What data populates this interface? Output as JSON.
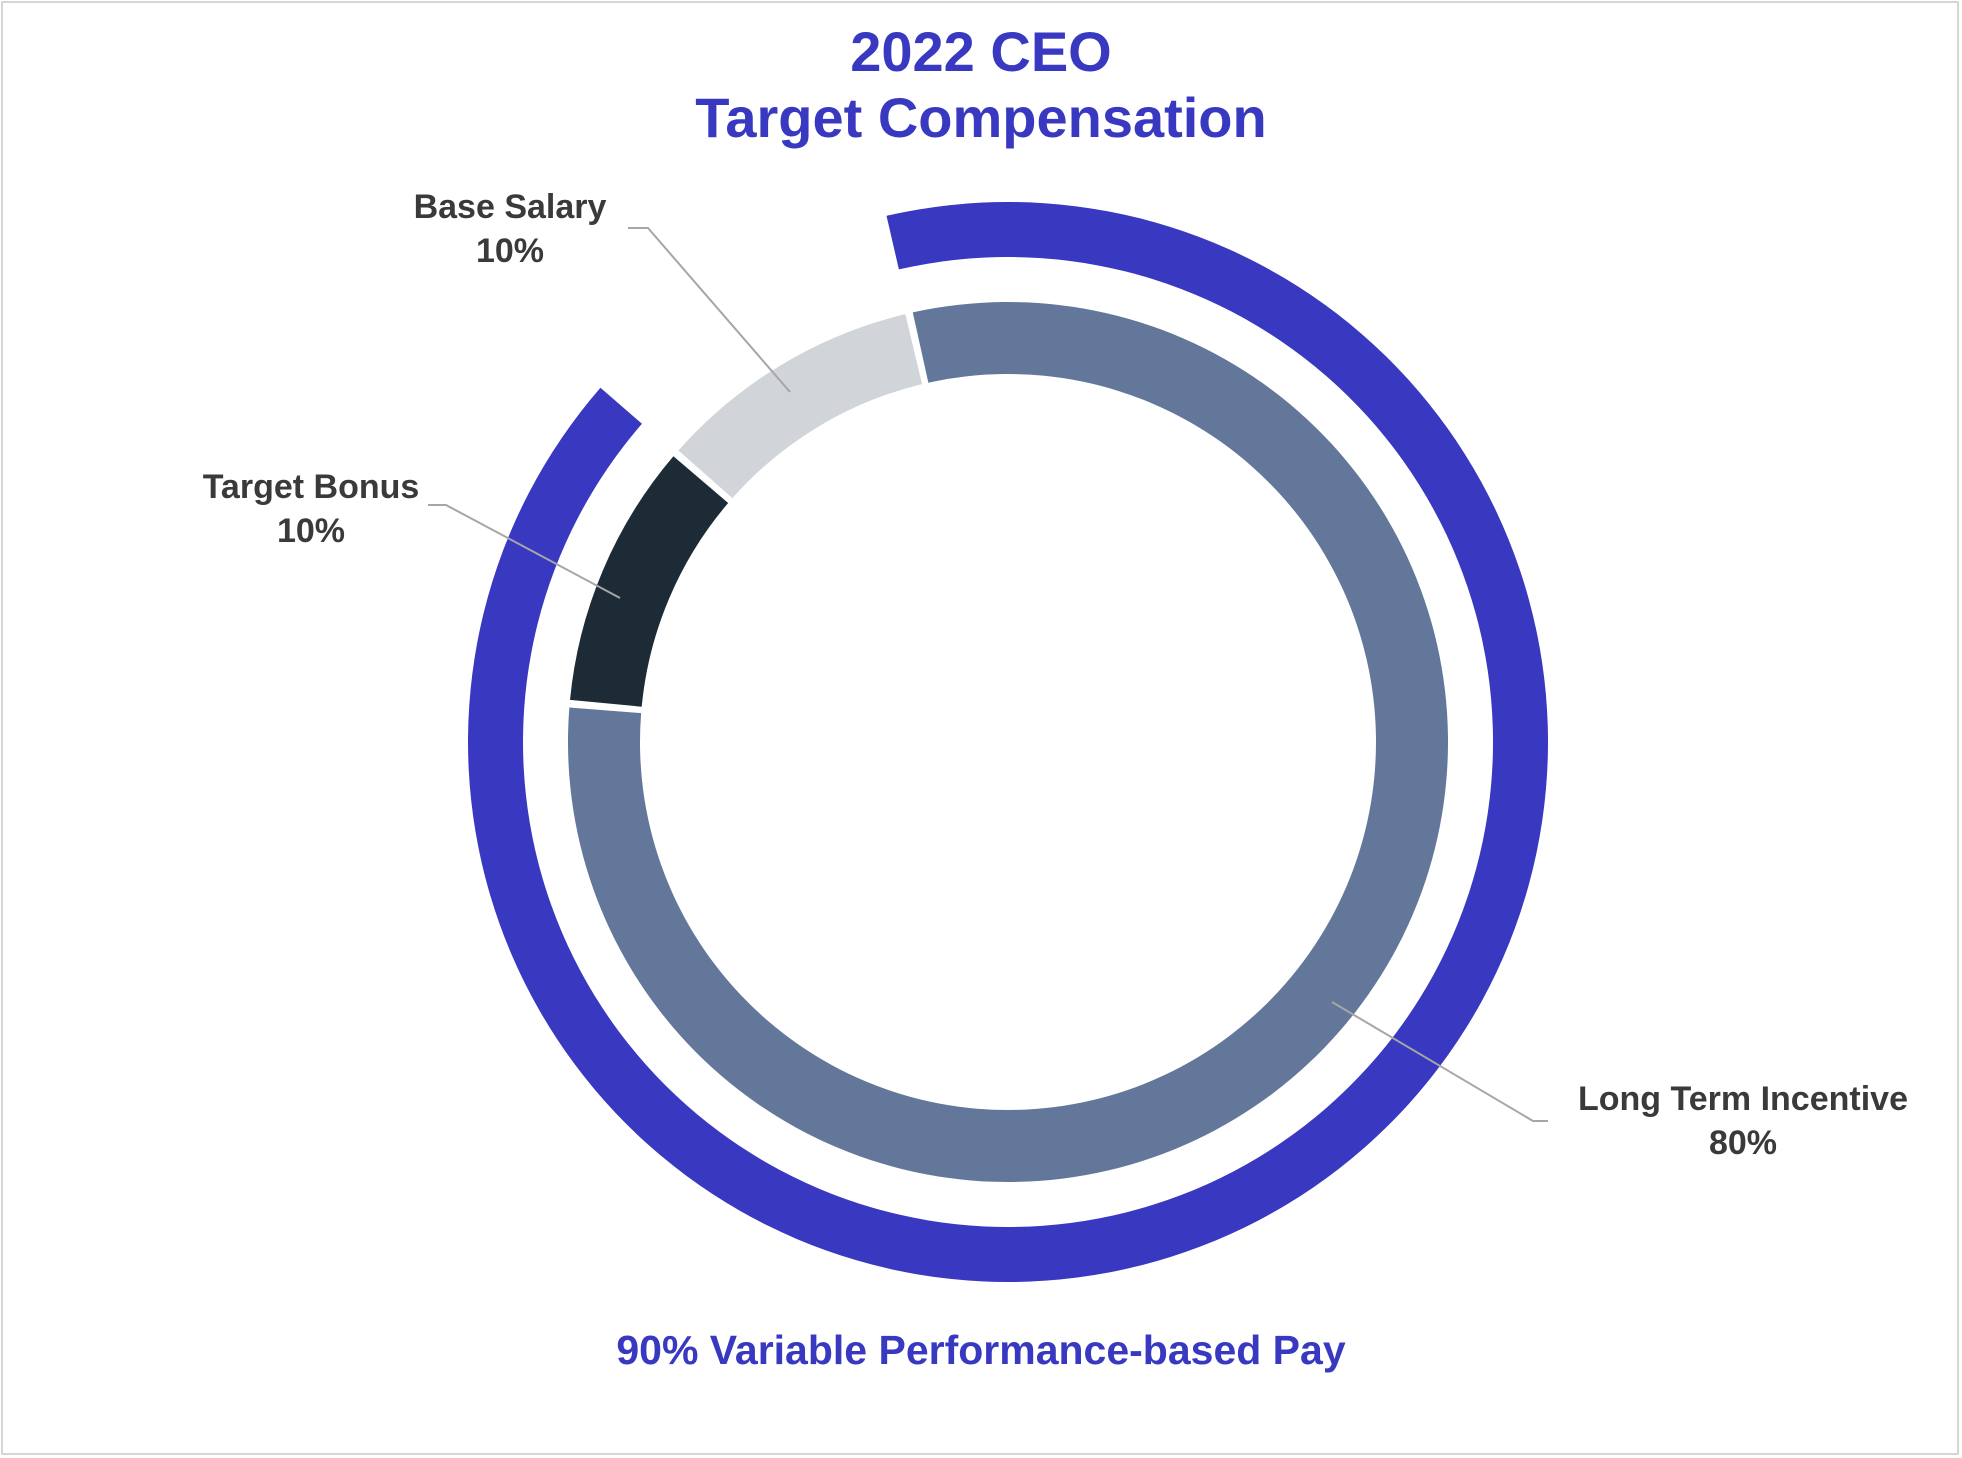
{
  "colors": {
    "accent": "#3838c0",
    "label_text": "#3a3a3a",
    "leader_line": "#a6a6a6"
  },
  "chart_data": {
    "type": "pie",
    "title_line_1": "2022 CEO",
    "title_line_2": "Target Compensation",
    "slices": [
      {
        "label": "Base Salary",
        "value": 10,
        "value_label": "10%",
        "color": "#d1d4d8"
      },
      {
        "label": "Long Term Incentive",
        "value": 80,
        "value_label": "80%",
        "color": "#63779b"
      },
      {
        "label": "Target Bonus",
        "value": 10,
        "value_label": "10%",
        "color": "#1c2b36"
      }
    ],
    "variable_pay": {
      "value": 90,
      "label": "90% Variable Performance-based Pay",
      "color": "#3838c0"
    }
  }
}
